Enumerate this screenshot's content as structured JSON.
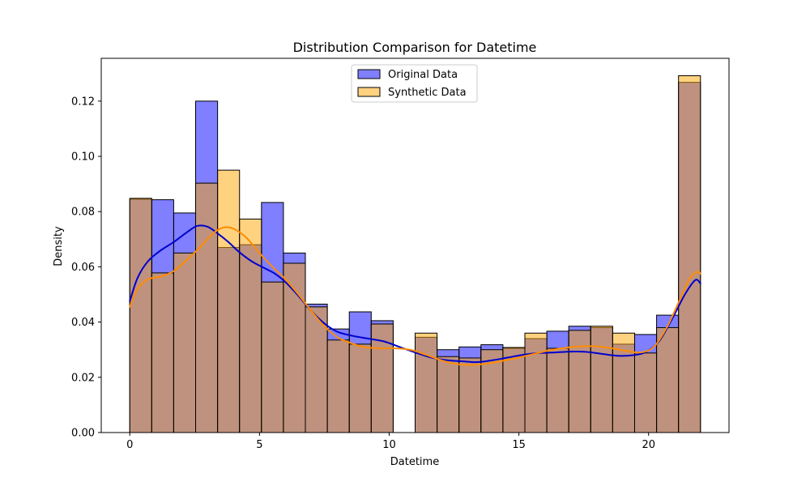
{
  "chart_data": {
    "type": "bar",
    "title": "Distribution Comparison for Datetime",
    "xlabel": "Datetime",
    "ylabel": "Density",
    "xlim": [
      -1.1,
      23.1
    ],
    "ylim": [
      0,
      0.1355
    ],
    "xticks": [
      {
        "value": 0,
        "label": "0"
      },
      {
        "value": 5,
        "label": "5"
      },
      {
        "value": 10,
        "label": "10"
      },
      {
        "value": 15,
        "label": "15"
      },
      {
        "value": 20,
        "label": "20"
      }
    ],
    "yticks": [
      {
        "value": 0,
        "label": "0.00"
      },
      {
        "value": 0.02,
        "label": "0.02"
      },
      {
        "value": 0.04,
        "label": "0.04"
      },
      {
        "value": 0.06,
        "label": "0.06"
      },
      {
        "value": 0.08,
        "label": "0.08"
      },
      {
        "value": 0.1,
        "label": "0.10"
      },
      {
        "value": 0.12,
        "label": "0.12"
      }
    ],
    "grid": false,
    "legend_position": "top-center",
    "series": [
      {
        "name": "Original Data",
        "color": "#0000ff",
        "fill_alpha": 0.5,
        "kde_color": "#0000cd",
        "bins": [
          {
            "start": 0.0,
            "end": 0.846,
            "value": 0.0845
          },
          {
            "start": 0.846,
            "end": 1.692,
            "value": 0.0843
          },
          {
            "start": 1.692,
            "end": 2.538,
            "value": 0.0795
          },
          {
            "start": 2.538,
            "end": 3.385,
            "value": 0.12
          },
          {
            "start": 3.385,
            "end": 4.231,
            "value": 0.067
          },
          {
            "start": 4.231,
            "end": 5.077,
            "value": 0.068
          },
          {
            "start": 5.077,
            "end": 5.923,
            "value": 0.0833
          },
          {
            "start": 5.923,
            "end": 6.769,
            "value": 0.065
          },
          {
            "start": 6.769,
            "end": 7.615,
            "value": 0.0465
          },
          {
            "start": 7.615,
            "end": 8.462,
            "value": 0.0375
          },
          {
            "start": 8.462,
            "end": 9.308,
            "value": 0.0437
          },
          {
            "start": 9.308,
            "end": 10.154,
            "value": 0.0405
          },
          {
            "start": 11.0,
            "end": 11.846,
            "value": 0.0345
          },
          {
            "start": 11.846,
            "end": 12.692,
            "value": 0.03
          },
          {
            "start": 12.692,
            "end": 13.538,
            "value": 0.031
          },
          {
            "start": 13.538,
            "end": 14.385,
            "value": 0.0318
          },
          {
            "start": 14.385,
            "end": 15.231,
            "value": 0.0305
          },
          {
            "start": 15.231,
            "end": 16.077,
            "value": 0.034
          },
          {
            "start": 16.077,
            "end": 16.923,
            "value": 0.0367
          },
          {
            "start": 16.923,
            "end": 17.769,
            "value": 0.0385
          },
          {
            "start": 17.769,
            "end": 18.615,
            "value": 0.038
          },
          {
            "start": 18.615,
            "end": 19.462,
            "value": 0.032
          },
          {
            "start": 19.462,
            "end": 20.308,
            "value": 0.0355
          },
          {
            "start": 20.308,
            "end": 21.154,
            "value": 0.0425
          },
          {
            "start": 21.154,
            "end": 22.0,
            "value": 0.1268
          }
        ],
        "kde": [
          [
            0.0,
            0.0475
          ],
          [
            0.3,
            0.056
          ],
          [
            0.7,
            0.062
          ],
          [
            1.2,
            0.066
          ],
          [
            1.7,
            0.069
          ],
          [
            2.2,
            0.0725
          ],
          [
            2.6,
            0.0748
          ],
          [
            3.0,
            0.0745
          ],
          [
            3.4,
            0.072
          ],
          [
            3.8,
            0.069
          ],
          [
            4.2,
            0.0655
          ],
          [
            4.7,
            0.062
          ],
          [
            5.2,
            0.0595
          ],
          [
            5.6,
            0.0575
          ],
          [
            6.0,
            0.0545
          ],
          [
            6.5,
            0.0495
          ],
          [
            7.0,
            0.044
          ],
          [
            7.5,
            0.0395
          ],
          [
            8.0,
            0.0365
          ],
          [
            8.6,
            0.035
          ],
          [
            9.2,
            0.034
          ],
          [
            9.8,
            0.033
          ],
          [
            10.4,
            0.031
          ],
          [
            11.0,
            0.029
          ],
          [
            11.6,
            0.0272
          ],
          [
            12.2,
            0.0262
          ],
          [
            12.8,
            0.0258
          ],
          [
            13.4,
            0.0255
          ],
          [
            14.0,
            0.0262
          ],
          [
            14.6,
            0.0272
          ],
          [
            15.2,
            0.0282
          ],
          [
            15.8,
            0.0288
          ],
          [
            16.4,
            0.029
          ],
          [
            17.0,
            0.0293
          ],
          [
            17.6,
            0.0292
          ],
          [
            18.2,
            0.0285
          ],
          [
            18.8,
            0.0278
          ],
          [
            19.4,
            0.028
          ],
          [
            19.9,
            0.0292
          ],
          [
            20.4,
            0.033
          ],
          [
            20.9,
            0.041
          ],
          [
            21.4,
            0.05
          ],
          [
            21.8,
            0.0552
          ],
          [
            22.0,
            0.054
          ]
        ]
      },
      {
        "name": "Synthetic Data",
        "color": "#ffa500",
        "fill_alpha": 0.5,
        "kde_color": "#ff8c00",
        "bins": [
          {
            "start": 0.0,
            "end": 0.846,
            "value": 0.0848
          },
          {
            "start": 0.846,
            "end": 1.692,
            "value": 0.0578
          },
          {
            "start": 1.692,
            "end": 2.538,
            "value": 0.065
          },
          {
            "start": 2.538,
            "end": 3.385,
            "value": 0.0903
          },
          {
            "start": 3.385,
            "end": 4.231,
            "value": 0.095
          },
          {
            "start": 4.231,
            "end": 5.077,
            "value": 0.0773
          },
          {
            "start": 5.077,
            "end": 5.923,
            "value": 0.0545
          },
          {
            "start": 5.923,
            "end": 6.769,
            "value": 0.0613
          },
          {
            "start": 6.769,
            "end": 7.615,
            "value": 0.0455
          },
          {
            "start": 7.615,
            "end": 8.462,
            "value": 0.0335
          },
          {
            "start": 8.462,
            "end": 9.308,
            "value": 0.032
          },
          {
            "start": 9.308,
            "end": 10.154,
            "value": 0.0393
          },
          {
            "start": 11.0,
            "end": 11.846,
            "value": 0.036
          },
          {
            "start": 11.846,
            "end": 12.692,
            "value": 0.0275
          },
          {
            "start": 12.692,
            "end": 13.538,
            "value": 0.027
          },
          {
            "start": 13.538,
            "end": 14.385,
            "value": 0.03
          },
          {
            "start": 14.385,
            "end": 15.231,
            "value": 0.0308
          },
          {
            "start": 15.231,
            "end": 16.077,
            "value": 0.036
          },
          {
            "start": 16.077,
            "end": 16.923,
            "value": 0.0305
          },
          {
            "start": 16.923,
            "end": 17.769,
            "value": 0.037
          },
          {
            "start": 17.769,
            "end": 18.615,
            "value": 0.0385
          },
          {
            "start": 18.615,
            "end": 19.462,
            "value": 0.036
          },
          {
            "start": 19.462,
            "end": 20.308,
            "value": 0.0288
          },
          {
            "start": 20.308,
            "end": 21.154,
            "value": 0.038
          },
          {
            "start": 21.154,
            "end": 22.0,
            "value": 0.1292
          }
        ],
        "kde": [
          [
            0.0,
            0.0455
          ],
          [
            0.3,
            0.052
          ],
          [
            0.7,
            0.0555
          ],
          [
            1.2,
            0.0565
          ],
          [
            1.7,
            0.0585
          ],
          [
            2.2,
            0.0625
          ],
          [
            2.7,
            0.067
          ],
          [
            3.2,
            0.072
          ],
          [
            3.6,
            0.0742
          ],
          [
            4.0,
            0.0738
          ],
          [
            4.5,
            0.0705
          ],
          [
            5.0,
            0.065
          ],
          [
            5.5,
            0.06
          ],
          [
            6.0,
            0.0555
          ],
          [
            6.5,
            0.05
          ],
          [
            7.0,
            0.044
          ],
          [
            7.5,
            0.0385
          ],
          [
            8.0,
            0.0345
          ],
          [
            8.5,
            0.0325
          ],
          [
            9.0,
            0.031
          ],
          [
            9.6,
            0.0305
          ],
          [
            10.2,
            0.0305
          ],
          [
            10.8,
            0.03
          ],
          [
            11.4,
            0.0282
          ],
          [
            12.0,
            0.0262
          ],
          [
            12.6,
            0.0248
          ],
          [
            13.2,
            0.0245
          ],
          [
            13.8,
            0.025
          ],
          [
            14.4,
            0.026
          ],
          [
            15.0,
            0.0272
          ],
          [
            15.6,
            0.0285
          ],
          [
            16.2,
            0.0298
          ],
          [
            16.8,
            0.0307
          ],
          [
            17.4,
            0.0312
          ],
          [
            18.0,
            0.0312
          ],
          [
            18.6,
            0.0305
          ],
          [
            19.2,
            0.0295
          ],
          [
            19.7,
            0.029
          ],
          [
            20.2,
            0.031
          ],
          [
            20.7,
            0.038
          ],
          [
            21.2,
            0.048
          ],
          [
            21.6,
            0.056
          ],
          [
            21.9,
            0.0582
          ],
          [
            22.0,
            0.0575
          ]
        ]
      }
    ]
  }
}
